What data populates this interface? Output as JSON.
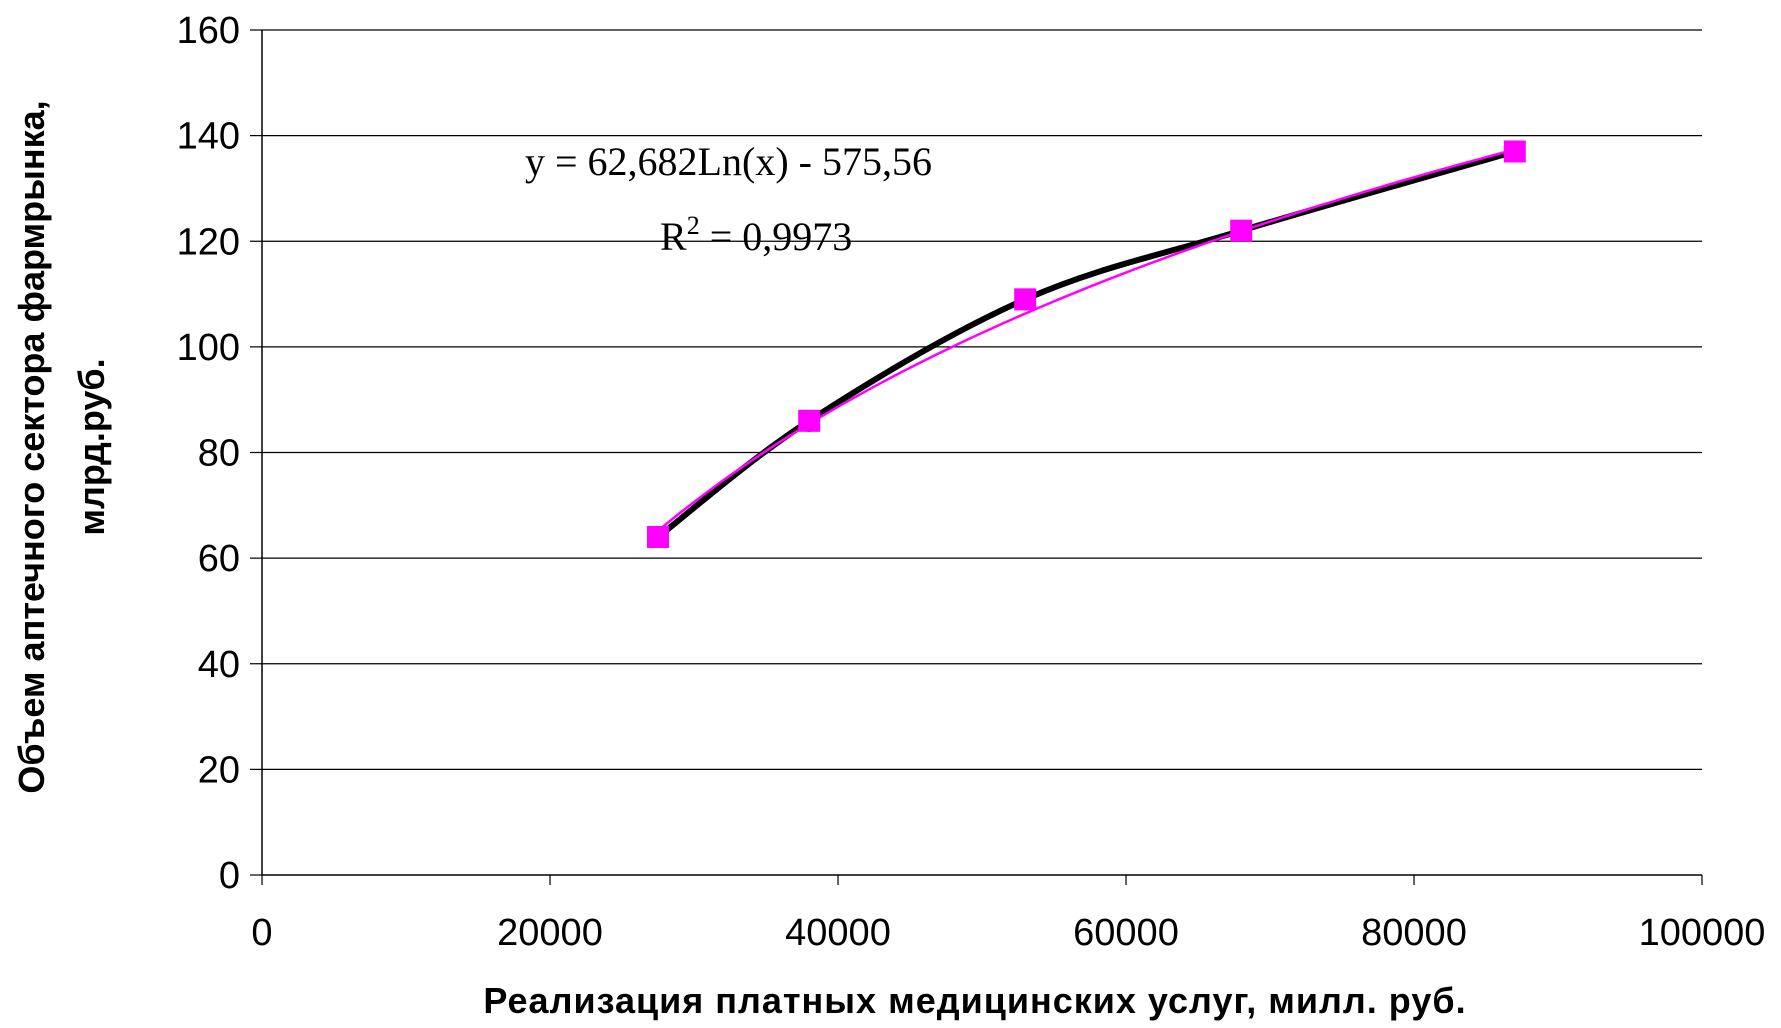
{
  "chart_data": {
    "type": "scatter",
    "title": "",
    "xlabel": "Реализация платных медицинских услуг, милл. руб.",
    "ylabel_line1": "Объем аптечного сектора фармрынка,",
    "ylabel_line2": "млрд.руб.",
    "xlim": [
      0,
      100000
    ],
    "ylim": [
      0,
      160
    ],
    "x_ticks": [
      0,
      20000,
      40000,
      60000,
      80000,
      100000
    ],
    "y_ticks": [
      0,
      20,
      40,
      60,
      80,
      100,
      120,
      140,
      160
    ],
    "grid": "horizontal",
    "series": [
      {
        "kind": "data-line",
        "color": "#000000",
        "x": [
          27500,
          38000,
          53000,
          68000,
          87000
        ],
        "y": [
          64,
          86,
          109,
          122,
          137
        ]
      },
      {
        "kind": "trendline",
        "color": "#ff00ff",
        "x": [
          27500,
          38000,
          53000,
          68000,
          87000
        ],
        "y": [
          64,
          86,
          109,
          122,
          137
        ]
      }
    ],
    "trendline": {
      "a": 62.682,
      "b": -575.56,
      "equation": "y = 62,682Ln(x) - 575,56",
      "r2_prefix": "R",
      "r2_exponent": "2",
      "r2_suffix": " = 0,9973"
    }
  }
}
